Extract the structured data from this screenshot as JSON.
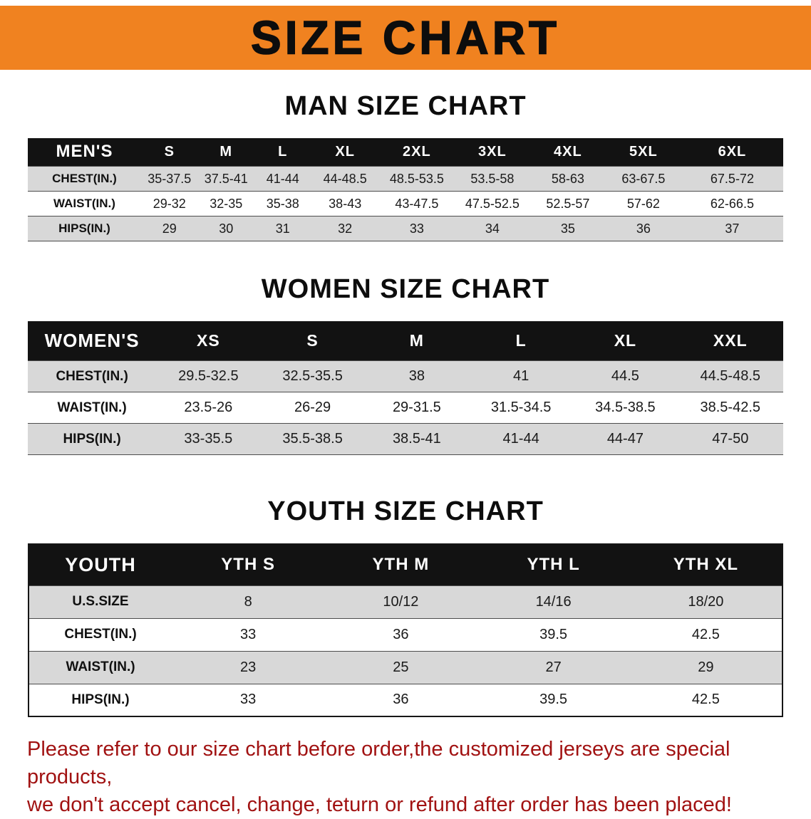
{
  "banner": {
    "title": "SIZE CHART",
    "bg_color": "#F08220",
    "text_color": "#0D0D0D"
  },
  "chart_data": [
    {
      "type": "table",
      "title": "MAN SIZE CHART",
      "columns": [
        "MEN'S",
        "S",
        "M",
        "L",
        "XL",
        "2XL",
        "3XL",
        "4XL",
        "5XL",
        "6XL"
      ],
      "rows": [
        [
          "CHEST(IN.)",
          "35-37.5",
          "37.5-41",
          "41-44",
          "44-48.5",
          "48.5-53.5",
          "53.5-58",
          "58-63",
          "63-67.5",
          "67.5-72"
        ],
        [
          "WAIST(IN.)",
          "29-32",
          "32-35",
          "35-38",
          "38-43",
          "43-47.5",
          "47.5-52.5",
          "52.5-57",
          "57-62",
          "62-66.5"
        ],
        [
          "HIPS(IN.)",
          "29",
          "30",
          "31",
          "32",
          "33",
          "34",
          "35",
          "36",
          "37"
        ]
      ],
      "header_bg": "#121212",
      "stripe_color": "#D8D8D8"
    },
    {
      "type": "table",
      "title": "WOMEN SIZE CHART",
      "columns": [
        "WOMEN'S",
        "XS",
        "S",
        "M",
        "L",
        "XL",
        "XXL"
      ],
      "rows": [
        [
          "CHEST(IN.)",
          "29.5-32.5",
          "32.5-35.5",
          "38",
          "41",
          "44.5",
          "44.5-48.5"
        ],
        [
          "WAIST(IN.)",
          "23.5-26",
          "26-29",
          "29-31.5",
          "31.5-34.5",
          "34.5-38.5",
          "38.5-42.5"
        ],
        [
          "HIPS(IN.)",
          "33-35.5",
          "35.5-38.5",
          "38.5-41",
          "41-44",
          "44-47",
          "47-50"
        ]
      ],
      "header_bg": "#121212",
      "stripe_color": "#D8D8D8"
    },
    {
      "type": "table",
      "title": "YOUTH SIZE CHART",
      "columns": [
        "YOUTH",
        "YTH S",
        "YTH M",
        "YTH L",
        "YTH XL"
      ],
      "rows": [
        [
          "U.S.SIZE",
          "8",
          "10/12",
          "14/16",
          "18/20"
        ],
        [
          "CHEST(IN.)",
          "33",
          "36",
          "39.5",
          "42.5"
        ],
        [
          "WAIST(IN.)",
          "23",
          "25",
          "27",
          "29"
        ],
        [
          "HIPS(IN.)",
          "33",
          "36",
          "39.5",
          "42.5"
        ]
      ],
      "header_bg": "#121212",
      "stripe_color": "#D8D8D8"
    }
  ],
  "disclaimer": {
    "color": "#A11212",
    "line1": "Please refer to our size chart before order,the customized jerseys are special products,",
    "line2": "we don't accept cancel, change, teturn or refund after order has been placed!"
  }
}
